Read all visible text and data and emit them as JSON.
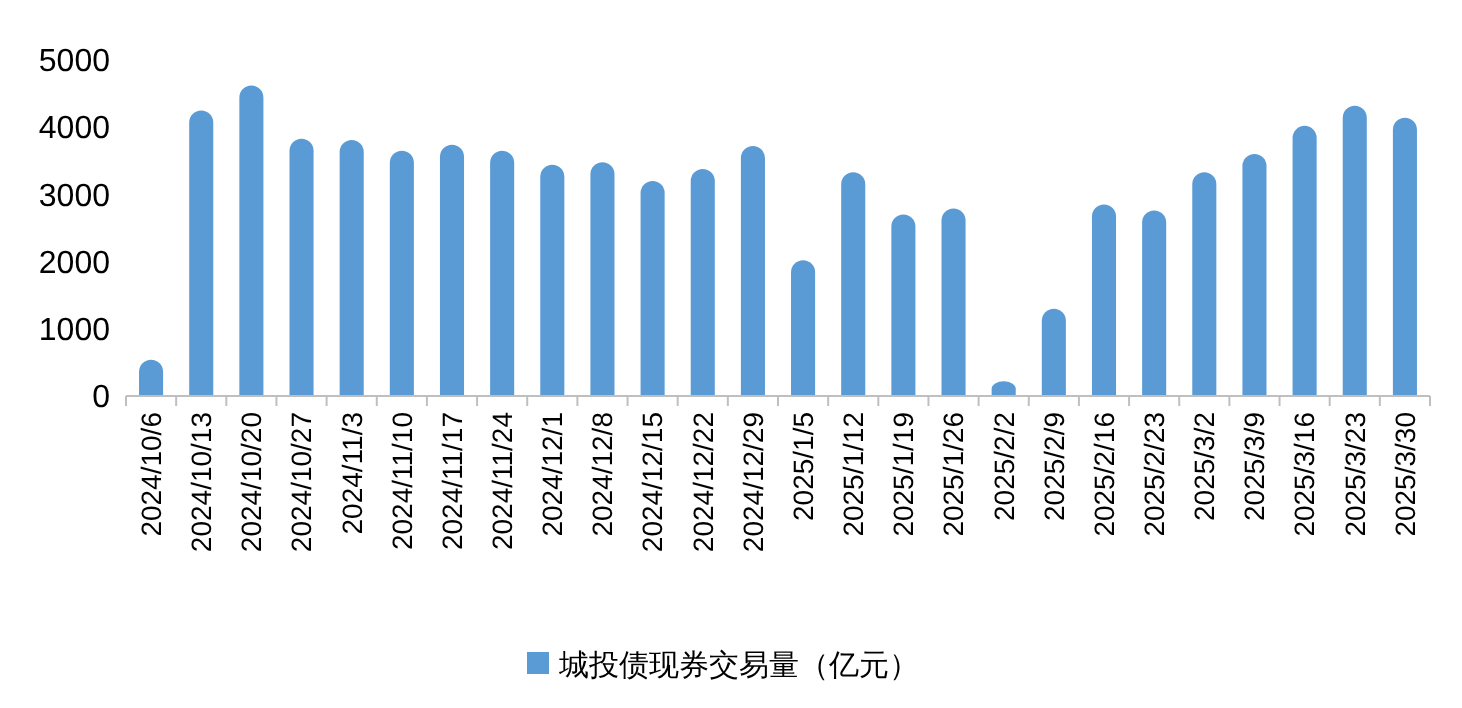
{
  "chart_data": {
    "type": "bar",
    "categories": [
      "2024/10/6",
      "2024/10/13",
      "2024/10/20",
      "2024/10/27",
      "2024/11/3",
      "2024/11/10",
      "2024/11/17",
      "2024/11/24",
      "2024/12/1",
      "2024/12/8",
      "2024/12/15",
      "2024/12/22",
      "2024/12/29",
      "2025/1/5",
      "2025/1/12",
      "2025/1/19",
      "2025/1/26",
      "2025/2/2",
      "2025/2/9",
      "2025/2/16",
      "2025/2/23",
      "2025/3/2",
      "2025/3/9",
      "2025/3/16",
      "2025/3/23",
      "2025/3/30"
    ],
    "series": [
      {
        "name": "城投债现券交易量（亿元）",
        "color": "#5b9bd5",
        "values": [
          540,
          4250,
          4620,
          3830,
          3810,
          3650,
          3740,
          3650,
          3440,
          3480,
          3200,
          3380,
          3720,
          2020,
          3330,
          2700,
          2790,
          220,
          1300,
          2850,
          2760,
          3330,
          3600,
          4020,
          4320,
          4140
        ]
      }
    ],
    "ylim": [
      0,
      5000
    ],
    "yticks": [
      0,
      1000,
      2000,
      3000,
      4000,
      5000
    ],
    "grid": false,
    "legend": "bottom"
  }
}
